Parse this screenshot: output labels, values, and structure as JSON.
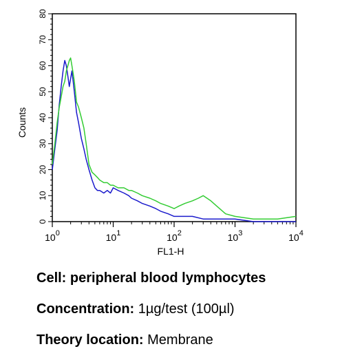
{
  "chart_data": {
    "type": "line",
    "xlabel": "FL1-H",
    "ylabel": "Counts",
    "x_scale": "log",
    "xlim": [
      1,
      10000
    ],
    "ylim": [
      0,
      80
    ],
    "x_ticks": [
      {
        "value": 1,
        "base": "10",
        "exp": "0"
      },
      {
        "value": 10,
        "base": "10",
        "exp": "1"
      },
      {
        "value": 100,
        "base": "10",
        "exp": "2"
      },
      {
        "value": 1000,
        "base": "10",
        "exp": "3"
      },
      {
        "value": 10000,
        "base": "10",
        "exp": "4"
      }
    ],
    "y_ticks": [
      0,
      10,
      20,
      30,
      40,
      50,
      60,
      70,
      80
    ],
    "grid": false,
    "series": [
      {
        "color": "#1a1acc",
        "x": [
          1,
          1.1,
          1.2,
          1.3,
          1.4,
          1.5,
          1.6,
          1.7,
          1.8,
          1.9,
          2.0,
          2.1,
          2.2,
          2.3,
          2.4,
          2.5,
          2.7,
          3.0,
          3.3,
          3.6,
          4.0,
          4.5,
          5.0,
          5.5,
          6.0,
          7.0,
          8.0,
          9.0,
          10,
          12,
          15,
          18,
          20,
          25,
          30,
          40,
          50,
          60,
          80,
          100,
          120,
          150,
          200,
          300,
          400,
          600,
          1000,
          2000,
          5000,
          10000
        ],
        "values": [
          20,
          28,
          35,
          45,
          52,
          58,
          62,
          60,
          56,
          52,
          55,
          58,
          54,
          50,
          46,
          42,
          38,
          32,
          28,
          24,
          20,
          16,
          13,
          12,
          12,
          11,
          12,
          11,
          13,
          12,
          11,
          10,
          9,
          8,
          7,
          6,
          5,
          4,
          3,
          2,
          2,
          2,
          2,
          1,
          1,
          1,
          1,
          0,
          0,
          0
        ]
      },
      {
        "color": "#33cc33",
        "x": [
          1,
          1.1,
          1.2,
          1.3,
          1.4,
          1.5,
          1.6,
          1.7,
          1.8,
          1.9,
          2.0,
          2.1,
          2.2,
          2.3,
          2.4,
          2.5,
          2.7,
          3.0,
          3.3,
          3.6,
          4.0,
          4.5,
          5.0,
          5.5,
          6.0,
          7.0,
          8.0,
          9.0,
          10,
          12,
          15,
          18,
          20,
          25,
          30,
          40,
          50,
          60,
          80,
          100,
          120,
          150,
          200,
          250,
          300,
          400,
          500,
          700,
          1000,
          2000,
          5000,
          10000
        ],
        "values": [
          22,
          30,
          38,
          44,
          48,
          52,
          54,
          58,
          60,
          62,
          63,
          60,
          57,
          54,
          50,
          46,
          44,
          40,
          36,
          30,
          22,
          19,
          18,
          17,
          16,
          15,
          15,
          14,
          14,
          13,
          13,
          12,
          12,
          11,
          10,
          9,
          8,
          7,
          6,
          5,
          6,
          7,
          8,
          9,
          10,
          8,
          6,
          3,
          2,
          1,
          1,
          2
        ]
      }
    ]
  },
  "captions": [
    {
      "key": "Cell:",
      "value": "peripheral blood lymphocytes"
    },
    {
      "key": "Concentration:",
      "value": "1µg/test (100µl)"
    },
    {
      "key": "Theory location:",
      "value": "Membrane"
    }
  ]
}
